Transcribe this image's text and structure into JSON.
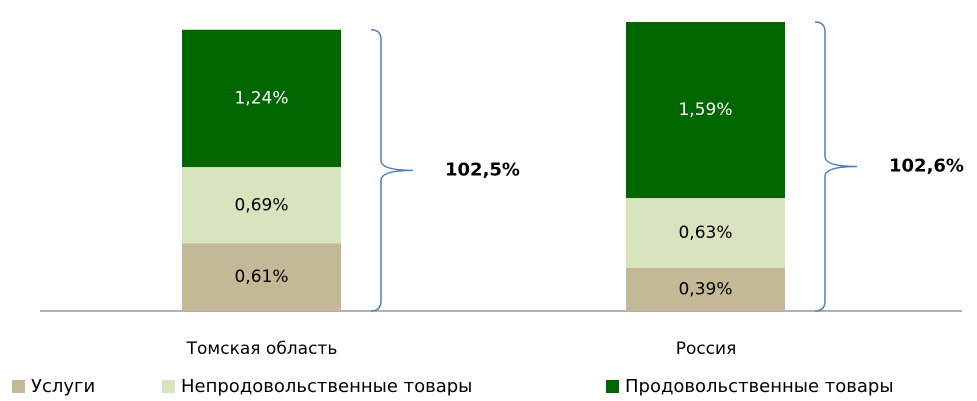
{
  "chart_data": {
    "type": "stacked_bar",
    "categories": [
      "Томская область",
      "Россия"
    ],
    "series": [
      {
        "name": "Услуги",
        "color": "#c4b996",
        "values": [
          0.61,
          0.39
        ],
        "value_labels": [
          "0,61%",
          "0,39%"
        ]
      },
      {
        "name": "Непродовольственные товары",
        "color": "#d7e4bd",
        "values": [
          0.69,
          0.63
        ],
        "value_labels": [
          "0,69%",
          "0,63%"
        ]
      },
      {
        "name": "Продовольственные товары",
        "color": "#006600",
        "values": [
          1.24,
          1.59
        ],
        "value_labels": [
          "1,24%",
          "1,59%"
        ]
      }
    ],
    "annotations": [
      "102,5%",
      "102,6%"
    ],
    "legend": "bottom"
  }
}
